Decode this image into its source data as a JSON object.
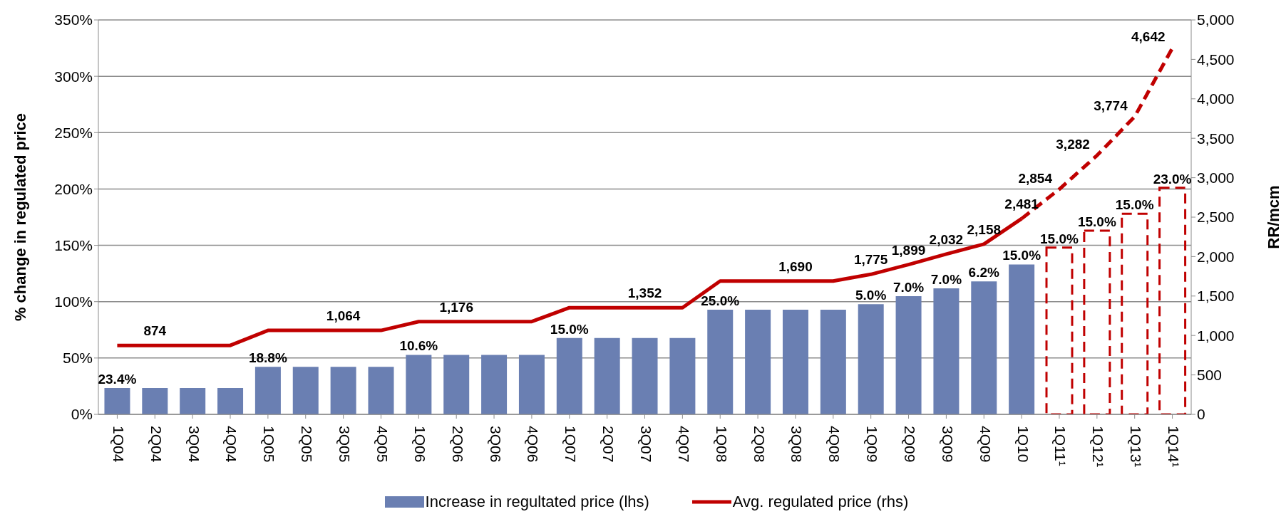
{
  "chart_data": {
    "type": "bar",
    "ylabel": "% change in regulated price",
    "y2label": "RR/mcm",
    "categories": [
      "1Q04",
      "2Q04",
      "3Q04",
      "4Q04",
      "1Q05",
      "2Q05",
      "3Q05",
      "4Q05",
      "1Q06",
      "2Q06",
      "3Q06",
      "4Q06",
      "1Q07",
      "2Q07",
      "3Q07",
      "4Q07",
      "1Q08",
      "2Q08",
      "3Q08",
      "4Q08",
      "1Q09",
      "2Q09",
      "3Q09",
      "4Q09",
      "1Q10",
      "1Q11¹",
      "1Q12¹",
      "1Q13¹",
      "1Q14¹"
    ],
    "stacked": true,
    "series": [
      {
        "name": "Increase in regultated price (lhs)",
        "color": "#6a7fb2",
        "values": [
          23.4,
          23.4,
          23.4,
          23.4,
          42.2,
          42.2,
          42.2,
          42.2,
          52.8,
          52.8,
          52.8,
          52.8,
          67.8,
          67.8,
          67.8,
          67.8,
          92.8,
          92.8,
          92.8,
          92.8,
          97.8,
          104.8,
          111.8,
          118,
          133,
          null,
          null,
          null,
          null
        ]
      },
      {
        "color": "#c00000",
        "line_style": "dashed",
        "values": [
          null,
          null,
          null,
          null,
          null,
          null,
          null,
          null,
          null,
          null,
          null,
          null,
          null,
          null,
          null,
          null,
          null,
          null,
          null,
          null,
          null,
          null,
          null,
          null,
          null,
          148,
          163,
          178,
          201
        ]
      },
      {
        "name": "Avg. regulated price (rhs)",
        "type": "line",
        "axis": "y2",
        "color": "#c00000",
        "line_style": "solid",
        "values": [
          874,
          874,
          874,
          874,
          1064,
          1064,
          1064,
          1064,
          1176,
          1176,
          1176,
          1176,
          1352,
          1352,
          1352,
          1352,
          1690,
          1690,
          1690,
          1690,
          1775,
          1899,
          2032,
          2158,
          2481,
          null,
          null,
          null,
          null
        ],
        "value_labels": [
          null,
          "874",
          null,
          null,
          null,
          null,
          "1,064",
          null,
          null,
          "1,176",
          null,
          null,
          null,
          null,
          "1,352",
          null,
          null,
          null,
          "1,690",
          null,
          "1,775",
          "1,899",
          "2,032",
          "2,158",
          "2,481",
          null,
          null,
          null,
          null
        ]
      },
      {
        "type": "line",
        "axis": "y2",
        "color": "#c00000",
        "line_style": "dashed",
        "values": [
          null,
          null,
          null,
          null,
          null,
          null,
          null,
          null,
          null,
          null,
          null,
          null,
          null,
          null,
          null,
          null,
          null,
          null,
          null,
          null,
          null,
          null,
          null,
          null,
          2481,
          2854,
          3282,
          3774,
          4642
        ],
        "value_labels": [
          null,
          null,
          null,
          null,
          null,
          null,
          null,
          null,
          null,
          null,
          null,
          null,
          null,
          null,
          null,
          null,
          null,
          null,
          null,
          null,
          null,
          null,
          null,
          null,
          null,
          "2,854",
          "3,282",
          "3,774",
          "4,642"
        ]
      }
    ],
    "annotations": [
      {
        "text": "23.4%",
        "x": "1Q04",
        "y": 23.4
      },
      {
        "text": "18.8%",
        "x": "1Q05",
        "y": 42.2
      },
      {
        "text": "10.6%",
        "x": "1Q06",
        "y": 52.8
      },
      {
        "text": "15.0%",
        "x": "1Q07",
        "y": 67.8
      },
      {
        "text": "25.0%",
        "x": "1Q08",
        "y": 92.8
      },
      {
        "text": "5.0%",
        "x": "1Q09",
        "y": 97.8
      },
      {
        "text": "7.0%",
        "x": "2Q09",
        "y": 104.8
      },
      {
        "text": "7.0%",
        "x": "3Q09",
        "y": 111.8
      },
      {
        "text": "6.2%",
        "x": "4Q09",
        "y": 118
      },
      {
        "text": "15.0%",
        "x": "1Q10",
        "y": 133
      },
      {
        "text": "15.0%",
        "x": "1Q11¹",
        "y": 148
      },
      {
        "text": "15.0%",
        "x": "1Q12¹",
        "y": 163
      },
      {
        "text": "15.0%",
        "x": "1Q13¹",
        "y": 178
      },
      {
        "text": "23.0%",
        "x": "1Q14¹",
        "y": 201
      }
    ],
    "ylim": [
      0,
      350
    ],
    "yticks": [
      {
        "value": 0,
        "label": "0%"
      },
      {
        "value": 50,
        "label": "50%"
      },
      {
        "value": 100,
        "label": "100%"
      },
      {
        "value": 150,
        "label": "150%"
      },
      {
        "value": 200,
        "label": "200%"
      },
      {
        "value": 250,
        "label": "250%"
      },
      {
        "value": 300,
        "label": "300%"
      },
      {
        "value": 350,
        "label": "350%"
      }
    ],
    "y2lim": [
      0,
      5000
    ],
    "y2ticks": [
      0,
      500,
      {
        "value": 1000,
        "label": "1,000"
      },
      {
        "value": 1500,
        "label": "1,500"
      },
      {
        "value": 2000,
        "label": "2,000"
      },
      {
        "value": 2500,
        "label": "2,500"
      },
      {
        "value": 3000,
        "label": "3,000"
      },
      {
        "value": 3500,
        "label": "3,500"
      },
      {
        "value": 4000,
        "label": "4,000"
      },
      {
        "value": 4500,
        "label": "4,500"
      },
      {
        "value": 5000,
        "label": "5,000"
      }
    ],
    "grid": "y",
    "legend": "bottom",
    "marker": "none"
  }
}
